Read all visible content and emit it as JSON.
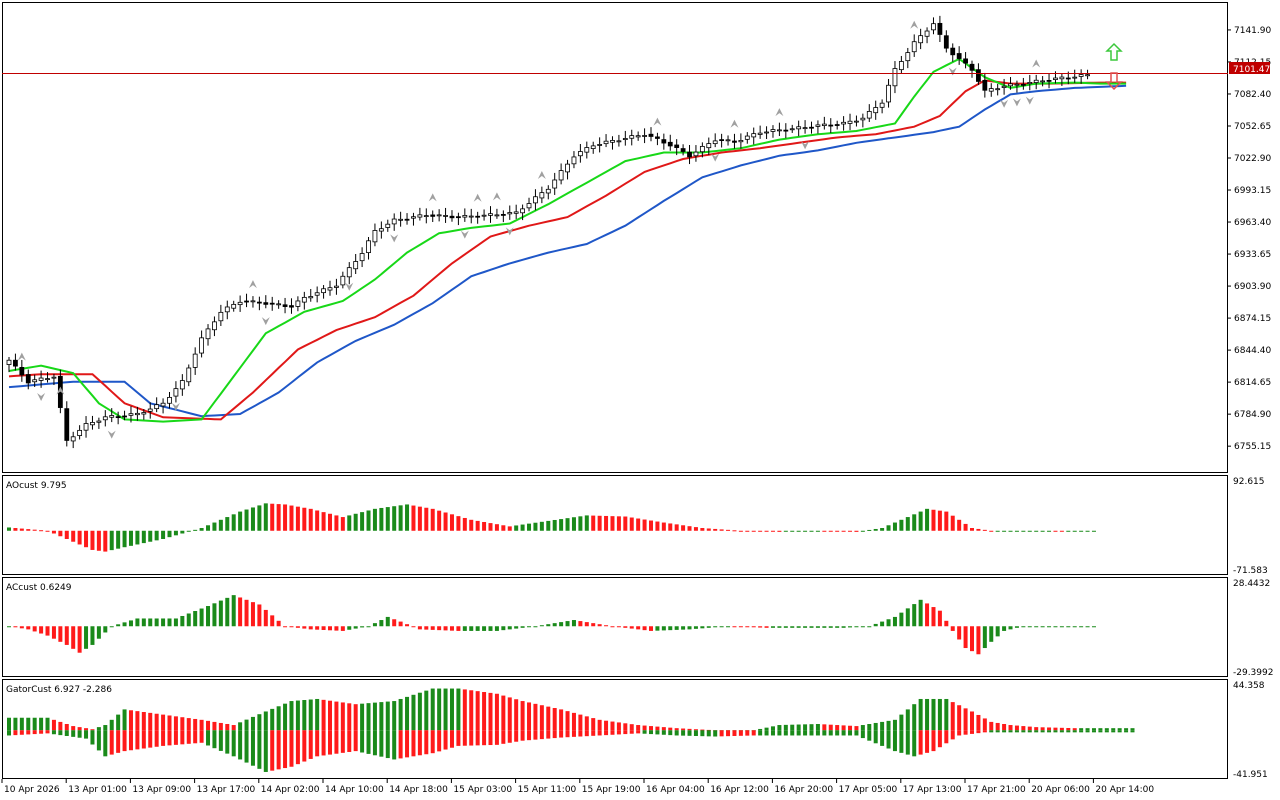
{
  "colors": {
    "background": "#ffffff",
    "frame": "#000000",
    "candle_body_up": "#ffffff",
    "candle_body_down": "#000000",
    "candle_wick": "#000000",
    "alligator_jaw": "#1f57c8",
    "alligator_teeth": "#e01818",
    "alligator_lips": "#18d818",
    "fractal": "#a0a0a0",
    "price_line": "#c00000",
    "price_tag_bg": "#c00000",
    "price_tag_text": "#ffffff",
    "hist_up": "#1a8a1a",
    "hist_down": "#ff1a1a",
    "signal_up": "#3cc83c",
    "signal_down": "#e05050"
  },
  "price_label": "7101.47",
  "main_axis": {
    "ticks": [
      "7141.90",
      "7112.15",
      "7082.40",
      "7052.65",
      "7022.90",
      "6993.15",
      "6963.40",
      "6933.65",
      "6903.90",
      "6874.15",
      "6844.40",
      "6814.65",
      "6784.90",
      "6755.15"
    ]
  },
  "ao_panel": {
    "label": "AOcust 9.795",
    "ticks": [
      "92.615",
      "-71.583"
    ]
  },
  "ac_panel": {
    "label": "ACcust 0.6249",
    "ticks": [
      "28.4432",
      "-29.3992"
    ]
  },
  "gator_panel": {
    "label": "GatorCust 6.927 -2.286",
    "ticks": [
      "44.358",
      "-41.951"
    ]
  },
  "time_axis": {
    "labels": [
      "10 Apr 2026",
      "13 Apr 01:00",
      "13 Apr 09:00",
      "13 Apr 17:00",
      "14 Apr 02:00",
      "14 Apr 10:00",
      "14 Apr 18:00",
      "15 Apr 03:00",
      "15 Apr 11:00",
      "15 Apr 19:00",
      "16 Apr 04:00",
      "16 Apr 12:00",
      "16 Apr 20:00",
      "17 Apr 05:00",
      "17 Apr 13:00",
      "17 Apr 21:00",
      "20 Apr 06:00",
      "20 Apr 14:00"
    ]
  },
  "chart_data": [
    {
      "type": "candlestick",
      "title": "",
      "ylim": [
        6733,
        7166
      ],
      "close_anchors": [
        [
          0,
          6835
        ],
        [
          3,
          6815
        ],
        [
          7,
          6820
        ],
        [
          9,
          6760
        ],
        [
          12,
          6775
        ],
        [
          15,
          6782
        ],
        [
          20,
          6785
        ],
        [
          24,
          6795
        ],
        [
          27,
          6815
        ],
        [
          30,
          6855
        ],
        [
          33,
          6880
        ],
        [
          36,
          6890
        ],
        [
          40,
          6888
        ],
        [
          44,
          6885
        ],
        [
          46,
          6893
        ],
        [
          51,
          6905
        ],
        [
          55,
          6935
        ],
        [
          57,
          6955
        ],
        [
          60,
          6965
        ],
        [
          65,
          6970
        ],
        [
          70,
          6968
        ],
        [
          75,
          6970
        ],
        [
          79,
          6972
        ],
        [
          84,
          6995
        ],
        [
          88,
          7025
        ],
        [
          91,
          7035
        ],
        [
          95,
          7040
        ],
        [
          99,
          7045
        ],
        [
          103,
          7035
        ],
        [
          106,
          7025
        ],
        [
          110,
          7040
        ],
        [
          113,
          7038
        ],
        [
          117,
          7047
        ],
        [
          122,
          7050
        ],
        [
          126,
          7053
        ],
        [
          130,
          7055
        ],
        [
          133,
          7060
        ],
        [
          136,
          7075
        ],
        [
          138,
          7105
        ],
        [
          141,
          7130
        ],
        [
          144,
          7148
        ],
        [
          146,
          7125
        ],
        [
          148,
          7115
        ],
        [
          150,
          7105
        ],
        [
          152,
          7085
        ],
        [
          155,
          7090
        ],
        [
          158,
          7092
        ],
        [
          161,
          7095
        ],
        [
          165,
          7098
        ],
        [
          168,
          7100
        ]
      ],
      "alligator": {
        "jaw_anchors": [
          [
            0,
            6810
          ],
          [
            10,
            6815
          ],
          [
            18,
            6815
          ],
          [
            22,
            6795
          ],
          [
            30,
            6783
          ],
          [
            36,
            6785
          ],
          [
            42,
            6805
          ],
          [
            48,
            6833
          ],
          [
            54,
            6853
          ],
          [
            60,
            6868
          ],
          [
            66,
            6888
          ],
          [
            72,
            6913
          ],
          [
            78,
            6925
          ],
          [
            84,
            6935
          ],
          [
            90,
            6943
          ],
          [
            96,
            6960
          ],
          [
            102,
            6983
          ],
          [
            108,
            7005
          ],
          [
            114,
            7016
          ],
          [
            120,
            7025
          ],
          [
            126,
            7030
          ],
          [
            132,
            7037
          ],
          [
            138,
            7042
          ],
          [
            144,
            7047
          ],
          [
            148,
            7052
          ],
          [
            152,
            7068
          ],
          [
            156,
            7082
          ],
          [
            160,
            7085
          ],
          [
            166,
            7088
          ],
          [
            174,
            7090
          ]
        ],
        "teeth_anchors": [
          [
            0,
            6820
          ],
          [
            5,
            6822
          ],
          [
            13,
            6822
          ],
          [
            18,
            6795
          ],
          [
            24,
            6782
          ],
          [
            33,
            6780
          ],
          [
            38,
            6805
          ],
          [
            45,
            6845
          ],
          [
            51,
            6863
          ],
          [
            57,
            6875
          ],
          [
            63,
            6895
          ],
          [
            69,
            6925
          ],
          [
            75,
            6950
          ],
          [
            81,
            6960
          ],
          [
            87,
            6968
          ],
          [
            93,
            6988
          ],
          [
            99,
            7010
          ],
          [
            105,
            7022
          ],
          [
            111,
            7028
          ],
          [
            117,
            7032
          ],
          [
            123,
            7037
          ],
          [
            129,
            7042
          ],
          [
            135,
            7045
          ],
          [
            141,
            7052
          ],
          [
            145,
            7062
          ],
          [
            149,
            7085
          ],
          [
            152,
            7095
          ],
          [
            156,
            7092
          ],
          [
            162,
            7092
          ],
          [
            170,
            7093
          ]
        ],
        "lips_anchors": [
          [
            0,
            6825
          ],
          [
            5,
            6830
          ],
          [
            10,
            6823
          ],
          [
            14,
            6795
          ],
          [
            18,
            6780
          ],
          [
            24,
            6778
          ],
          [
            30,
            6780
          ],
          [
            35,
            6820
          ],
          [
            40,
            6860
          ],
          [
            46,
            6880
          ],
          [
            52,
            6890
          ],
          [
            57,
            6910
          ],
          [
            62,
            6935
          ],
          [
            67,
            6953
          ],
          [
            72,
            6958
          ],
          [
            78,
            6962
          ],
          [
            84,
            6980
          ],
          [
            90,
            7000
          ],
          [
            96,
            7020
          ],
          [
            102,
            7028
          ],
          [
            108,
            7028
          ],
          [
            114,
            7032
          ],
          [
            120,
            7040
          ],
          [
            126,
            7045
          ],
          [
            132,
            7048
          ],
          [
            138,
            7055
          ],
          [
            141,
            7080
          ],
          [
            144,
            7103
          ],
          [
            148,
            7115
          ],
          [
            152,
            7098
          ],
          [
            156,
            7088
          ],
          [
            160,
            7092
          ],
          [
            166,
            7093
          ],
          [
            170,
            7092
          ]
        ]
      },
      "fractals_up": [
        2,
        8,
        38,
        66,
        73,
        76,
        83,
        101,
        113,
        120,
        141,
        160
      ],
      "fractals_down": [
        5,
        16,
        26,
        40,
        53,
        60,
        71,
        78,
        110,
        124,
        147,
        155,
        157,
        159
      ],
      "signal_arrows": [
        "up",
        "down"
      ]
    },
    {
      "type": "bar",
      "title": "AOcust",
      "ylim": [
        -71.583,
        92.615
      ],
      "anchors": [
        [
          0,
          6
        ],
        [
          3,
          3
        ],
        [
          6,
          0
        ],
        [
          10,
          -20
        ],
        [
          13,
          -35
        ],
        [
          15,
          -38
        ],
        [
          18,
          -30
        ],
        [
          24,
          -15
        ],
        [
          30,
          5
        ],
        [
          36,
          35
        ],
        [
          40,
          50
        ],
        [
          43,
          48
        ],
        [
          47,
          40
        ],
        [
          52,
          25
        ],
        [
          57,
          40
        ],
        [
          62,
          48
        ],
        [
          66,
          40
        ],
        [
          72,
          20
        ],
        [
          78,
          8
        ],
        [
          84,
          18
        ],
        [
          90,
          28
        ],
        [
          96,
          26
        ],
        [
          102,
          15
        ],
        [
          108,
          5
        ],
        [
          114,
          0
        ],
        [
          120,
          -2
        ],
        [
          126,
          0
        ],
        [
          132,
          -2
        ],
        [
          136,
          5
        ],
        [
          140,
          25
        ],
        [
          143,
          40
        ],
        [
          146,
          35
        ],
        [
          148,
          20
        ],
        [
          150,
          5
        ],
        [
          153,
          0
        ],
        [
          158,
          0
        ],
        [
          162,
          0
        ],
        [
          164,
          -1
        ]
      ]
    },
    {
      "type": "bar",
      "title": "ACcust",
      "ylim": [
        -29.3992,
        28.4432
      ],
      "anchors": [
        [
          0,
          0
        ],
        [
          3,
          -2
        ],
        [
          6,
          -6
        ],
        [
          9,
          -12
        ],
        [
          11,
          -17
        ],
        [
          13,
          -12
        ],
        [
          16,
          0
        ],
        [
          20,
          5
        ],
        [
          26,
          5
        ],
        [
          31,
          13
        ],
        [
          35,
          20
        ],
        [
          39,
          14
        ],
        [
          43,
          0
        ],
        [
          47,
          -2
        ],
        [
          52,
          -3
        ],
        [
          56,
          0
        ],
        [
          59,
          6
        ],
        [
          61,
          3
        ],
        [
          64,
          -2
        ],
        [
          70,
          -3
        ],
        [
          76,
          -3
        ],
        [
          82,
          0
        ],
        [
          88,
          4
        ],
        [
          94,
          0
        ],
        [
          100,
          -3
        ],
        [
          106,
          -2
        ],
        [
          112,
          0
        ],
        [
          118,
          -1
        ],
        [
          124,
          -1
        ],
        [
          130,
          -1
        ],
        [
          134,
          0
        ],
        [
          138,
          6
        ],
        [
          142,
          17
        ],
        [
          145,
          10
        ],
        [
          147,
          -3
        ],
        [
          149,
          -14
        ],
        [
          151,
          -18
        ],
        [
          153,
          -10
        ],
        [
          155,
          -3
        ],
        [
          158,
          0
        ],
        [
          162,
          0
        ],
        [
          164,
          0
        ]
      ]
    },
    {
      "type": "bar",
      "title": "GatorCust",
      "ylim": [
        -41.951,
        44.358
      ],
      "top_anchors": [
        [
          0,
          12
        ],
        [
          6,
          12
        ],
        [
          10,
          4
        ],
        [
          13,
          1
        ],
        [
          15,
          5
        ],
        [
          18,
          20
        ],
        [
          24,
          15
        ],
        [
          30,
          10
        ],
        [
          35,
          5
        ],
        [
          40,
          18
        ],
        [
          44,
          28
        ],
        [
          48,
          30
        ],
        [
          54,
          25
        ],
        [
          60,
          28
        ],
        [
          66,
          40
        ],
        [
          70,
          40
        ],
        [
          76,
          35
        ],
        [
          80,
          28
        ],
        [
          86,
          20
        ],
        [
          92,
          10
        ],
        [
          98,
          5
        ],
        [
          104,
          2
        ],
        [
          110,
          0
        ],
        [
          116,
          0
        ],
        [
          120,
          5
        ],
        [
          126,
          6
        ],
        [
          132,
          4
        ],
        [
          138,
          10
        ],
        [
          142,
          30
        ],
        [
          146,
          30
        ],
        [
          150,
          18
        ],
        [
          153,
          8
        ],
        [
          156,
          5
        ],
        [
          160,
          3
        ],
        [
          166,
          2
        ]
      ],
      "bottom_anchors": [
        [
          0,
          5
        ],
        [
          6,
          3
        ],
        [
          12,
          8
        ],
        [
          15,
          25
        ],
        [
          18,
          20
        ],
        [
          24,
          15
        ],
        [
          30,
          12
        ],
        [
          35,
          25
        ],
        [
          40,
          40
        ],
        [
          44,
          35
        ],
        [
          48,
          25
        ],
        [
          54,
          20
        ],
        [
          60,
          28
        ],
        [
          66,
          22
        ],
        [
          70,
          15
        ],
        [
          76,
          14
        ],
        [
          80,
          10
        ],
        [
          86,
          7
        ],
        [
          92,
          5
        ],
        [
          98,
          3
        ],
        [
          104,
          5
        ],
        [
          110,
          6
        ],
        [
          116,
          5
        ],
        [
          120,
          5
        ],
        [
          126,
          5
        ],
        [
          132,
          5
        ],
        [
          138,
          20
        ],
        [
          141,
          25
        ],
        [
          144,
          20
        ],
        [
          148,
          5
        ],
        [
          152,
          2
        ],
        [
          158,
          2
        ],
        [
          166,
          2
        ]
      ]
    }
  ]
}
